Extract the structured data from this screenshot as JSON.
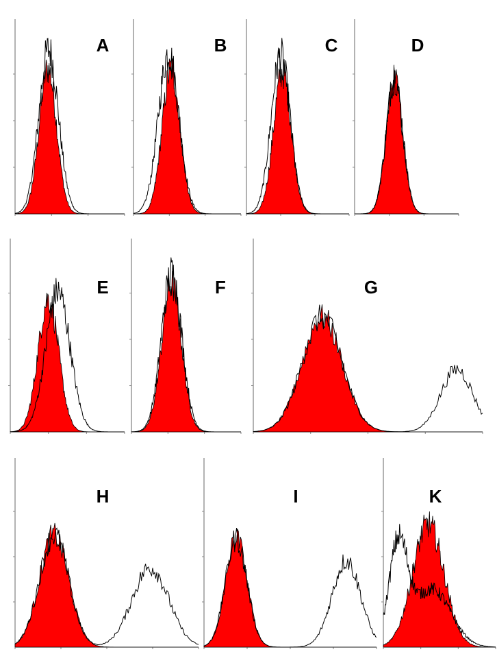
{
  "chart_data": [
    {
      "type": "area",
      "title": "A",
      "xlim": [
        0,
        3
      ],
      "ylim": [
        0,
        1
      ],
      "series": [
        {
          "role": "filled",
          "color": "#ff0000",
          "peaks": [
            {
              "x": 0.9,
              "y": 0.78,
              "sd": 0.24
            }
          ]
        },
        {
          "role": "outline",
          "color": "#000000",
          "peaks": [
            {
              "x": 0.92,
              "y": 0.88,
              "sd": 0.27
            }
          ]
        }
      ]
    },
    {
      "type": "area",
      "title": "B",
      "xlim": [
        0,
        3
      ],
      "ylim": [
        0,
        1
      ],
      "series": [
        {
          "role": "filled",
          "color": "#ff0000",
          "peaks": [
            {
              "x": 1.05,
              "y": 0.78,
              "sd": 0.25
            }
          ]
        },
        {
          "role": "outline",
          "color": "#000000",
          "peaks": [
            {
              "x": 0.98,
              "y": 0.86,
              "sd": 0.29
            }
          ]
        }
      ]
    },
    {
      "type": "area",
      "title": "C",
      "xlim": [
        0,
        3
      ],
      "ylim": [
        0,
        1
      ],
      "series": [
        {
          "role": "filled",
          "color": "#ff0000",
          "peaks": [
            {
              "x": 1.05,
              "y": 0.76,
              "sd": 0.26
            }
          ]
        },
        {
          "role": "outline",
          "color": "#000000",
          "peaks": [
            {
              "x": 1.0,
              "y": 0.85,
              "sd": 0.28
            }
          ]
        }
      ]
    },
    {
      "type": "area",
      "title": "D",
      "xlim": [
        0,
        3
      ],
      "ylim": [
        0,
        1
      ],
      "series": [
        {
          "role": "filled",
          "color": "#ff0000",
          "peaks": [
            {
              "x": 1.15,
              "y": 0.72,
              "sd": 0.24
            }
          ]
        },
        {
          "role": "outline",
          "color": "#000000",
          "peaks": [
            {
              "x": 1.15,
              "y": 0.73,
              "sd": 0.24
            }
          ]
        }
      ]
    },
    {
      "type": "area",
      "title": "E",
      "xlim": [
        0,
        3
      ],
      "ylim": [
        0,
        1
      ],
      "series": [
        {
          "role": "filled",
          "color": "#ff0000",
          "peaks": [
            {
              "x": 1.0,
              "y": 0.72,
              "sd": 0.27
            }
          ]
        },
        {
          "role": "outline",
          "color": "#000000",
          "peaks": [
            {
              "x": 1.25,
              "y": 0.76,
              "sd": 0.32
            }
          ]
        }
      ]
    },
    {
      "type": "area",
      "title": "F",
      "xlim": [
        0,
        3
      ],
      "ylim": [
        0,
        1
      ],
      "series": [
        {
          "role": "filled",
          "color": "#ff0000",
          "peaks": [
            {
              "x": 1.1,
              "y": 0.8,
              "sd": 0.27
            }
          ]
        },
        {
          "role": "outline",
          "color": "#000000",
          "peaks": [
            {
              "x": 1.1,
              "y": 0.86,
              "sd": 0.28
            }
          ]
        }
      ]
    },
    {
      "type": "area",
      "title": "G",
      "xlim": [
        0,
        4
      ],
      "ylim": [
        0,
        1
      ],
      "series": [
        {
          "role": "filled",
          "color": "#ff0000",
          "peaks": [
            {
              "x": 1.2,
              "y": 0.62,
              "sd": 0.35
            }
          ]
        },
        {
          "role": "outline",
          "color": "#000000",
          "peaks": [
            {
              "x": 1.2,
              "y": 0.62,
              "sd": 0.35
            },
            {
              "x": 3.55,
              "y": 0.34,
              "sd": 0.28
            }
          ]
        }
      ]
    },
    {
      "type": "area",
      "title": "H",
      "xlim": [
        0,
        4
      ],
      "ylim": [
        0,
        1
      ],
      "series": [
        {
          "role": "filled",
          "color": "#ff0000",
          "peaks": [
            {
              "x": 0.85,
              "y": 0.62,
              "sd": 0.32
            }
          ]
        },
        {
          "role": "outline",
          "color": "#000000",
          "peaks": [
            {
              "x": 0.85,
              "y": 0.62,
              "sd": 0.32
            },
            {
              "x": 2.95,
              "y": 0.44,
              "sd": 0.4
            }
          ]
        }
      ]
    },
    {
      "type": "area",
      "title": "I",
      "xlim": [
        0,
        4
      ],
      "ylim": [
        0,
        1
      ],
      "series": [
        {
          "role": "filled",
          "color": "#ff0000",
          "peaks": [
            {
              "x": 0.75,
              "y": 0.6,
              "sd": 0.25
            }
          ]
        },
        {
          "role": "outline",
          "color": "#000000",
          "peaks": [
            {
              "x": 0.75,
              "y": 0.6,
              "sd": 0.25
            },
            {
              "x": 3.3,
              "y": 0.48,
              "sd": 0.33
            }
          ]
        }
      ]
    },
    {
      "type": "area",
      "title": "K",
      "xlim": [
        0,
        3
      ],
      "ylim": [
        0,
        1
      ],
      "series": [
        {
          "role": "filled",
          "color": "#ff0000",
          "peaks": [
            {
              "x": 1.2,
              "y": 0.68,
              "sd": 0.42
            }
          ]
        },
        {
          "role": "outline",
          "color": "#000000",
          "peaks": [
            {
              "x": 0.4,
              "y": 0.55,
              "sd": 0.25
            },
            {
              "x": 1.3,
              "y": 0.32,
              "sd": 0.5
            }
          ]
        }
      ]
    }
  ]
}
